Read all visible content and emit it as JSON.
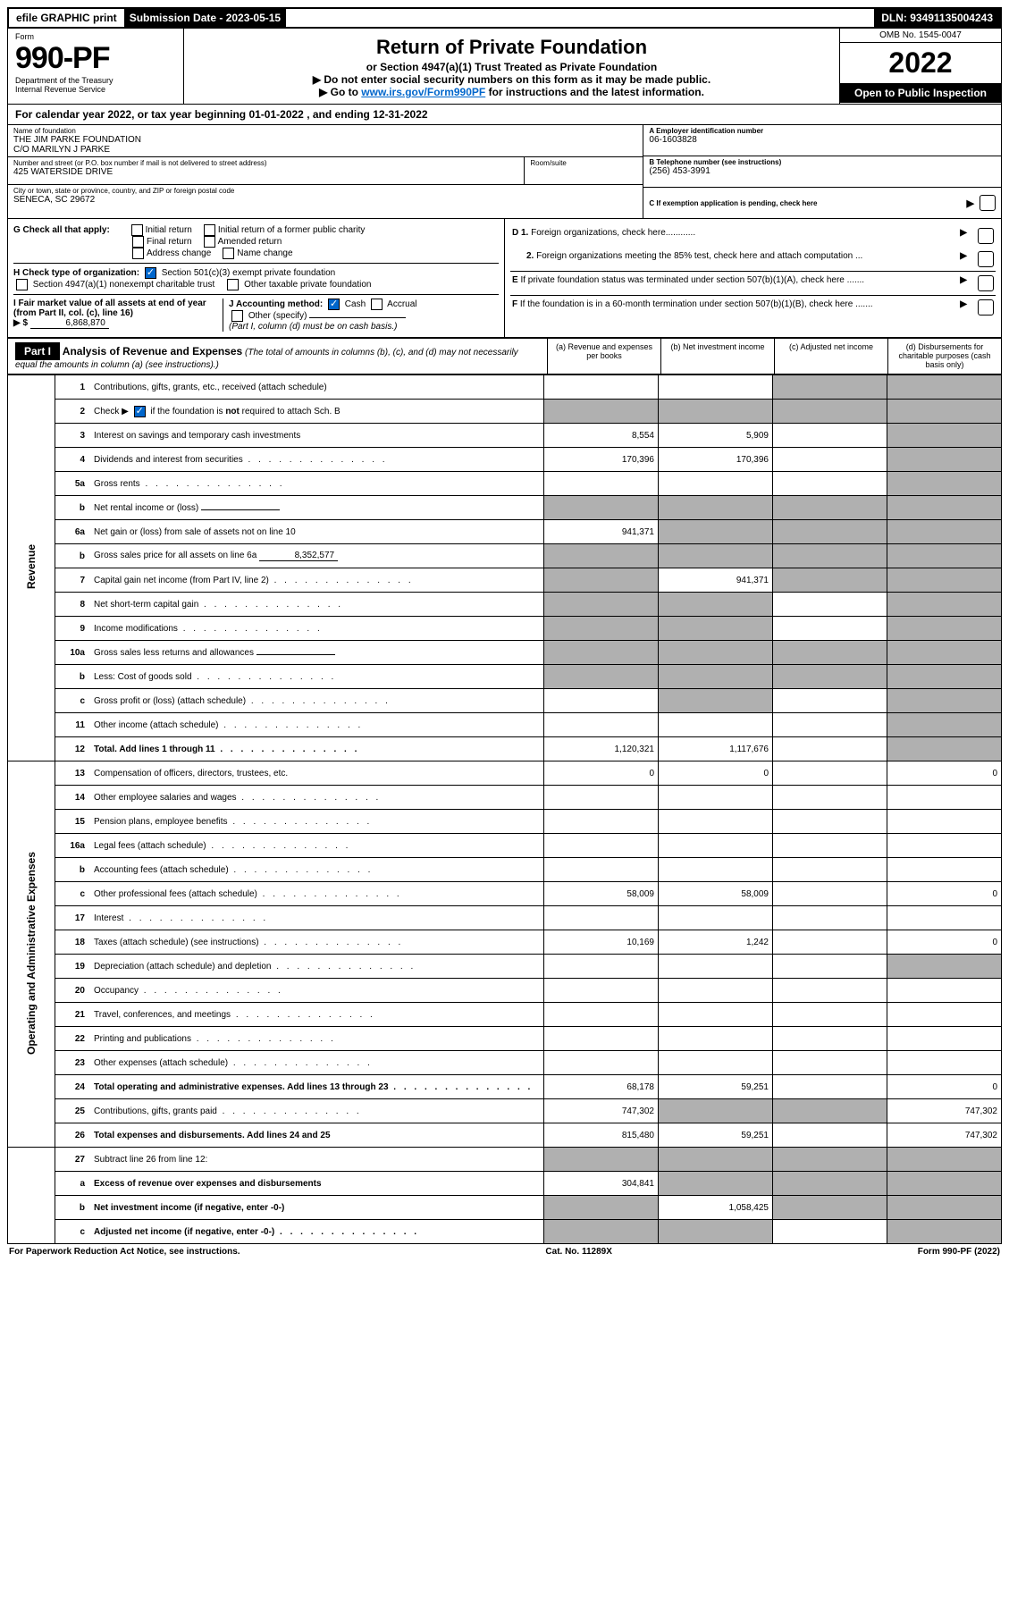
{
  "topbar": {
    "efile": "efile GRAPHIC print",
    "submission_label": "Submission Date - 2023-05-15",
    "dln": "DLN: 93491135004243"
  },
  "header": {
    "form_label": "Form",
    "form_number": "990-PF",
    "dept": "Department of the Treasury",
    "irs": "Internal Revenue Service",
    "title": "Return of Private Foundation",
    "subtitle": "or Section 4947(a)(1) Trust Treated as Private Foundation",
    "note1": "▶ Do not enter social security numbers on this form as it may be made public.",
    "note2_pre": "▶ Go to ",
    "note2_link": "www.irs.gov/Form990PF",
    "note2_post": " for instructions and the latest information.",
    "omb": "OMB No. 1545-0047",
    "year": "2022",
    "inspection": "Open to Public Inspection"
  },
  "calendar": {
    "text_pre": "For calendar year 2022, or tax year beginning ",
    "begin": "01-01-2022",
    "mid": " , and ending ",
    "end": "12-31-2022"
  },
  "entity": {
    "name_lbl": "Name of foundation",
    "name1": "THE JIM PARKE FOUNDATION",
    "name2": "C/O MARILYN J PARKE",
    "street_lbl": "Number and street (or P.O. box number if mail is not delivered to street address)",
    "street": "425 WATERSIDE DRIVE",
    "room_lbl": "Room/suite",
    "city_lbl": "City or town, state or province, country, and ZIP or foreign postal code",
    "city": "SENECA, SC  29672",
    "a_lbl": "A Employer identification number",
    "a_val": "06-1603828",
    "b_lbl": "B Telephone number (see instructions)",
    "b_val": "(256) 453-3991",
    "c_lbl": "C If exemption application is pending, check here"
  },
  "sectionG": {
    "label": "G Check all that apply:",
    "opts": [
      "Initial return",
      "Initial return of a former public charity",
      "Final return",
      "Amended return",
      "Address change",
      "Name change"
    ]
  },
  "sectionH": {
    "label": "H Check type of organization:",
    "opt1": "Section 501(c)(3) exempt private foundation",
    "opt2": "Section 4947(a)(1) nonexempt charitable trust",
    "opt3": "Other taxable private foundation"
  },
  "sectionI": {
    "label": "I Fair market value of all assets at end of year (from Part II, col. (c), line 16)",
    "arrow": "▶ $",
    "value": "6,868,870"
  },
  "sectionJ": {
    "label": "J Accounting method:",
    "cash": "Cash",
    "accrual": "Accrual",
    "other": "Other (specify)",
    "note": "(Part I, column (d) must be on cash basis.)"
  },
  "rightD": {
    "d1": "D 1. Foreign organizations, check here............",
    "d2": "2. Foreign organizations meeting the 85% test, check here and attach computation ...",
    "e": "E  If private foundation status was terminated under section 507(b)(1)(A), check here .......",
    "f": "F  If the foundation is in a 60-month termination under section 507(b)(1)(B), check here ......."
  },
  "part1": {
    "label": "Part I",
    "title": "Analysis of Revenue and Expenses",
    "title_note": " (The total of amounts in columns (b), (c), and (d) may not necessarily equal the amounts in column (a) (see instructions).)",
    "cols": {
      "a": "(a) Revenue and expenses per books",
      "b": "(b) Net investment income",
      "c": "(c) Adjusted net income",
      "d": "(d) Disbursements for charitable purposes (cash basis only)"
    }
  },
  "sidelabels": {
    "revenue": "Revenue",
    "expenses": "Operating and Administrative Expenses"
  },
  "rows": [
    {
      "n": "1",
      "d": "Contributions, gifts, grants, etc., received (attach schedule)",
      "a": "",
      "b": "",
      "c": "g",
      "dd": "g"
    },
    {
      "n": "2",
      "d": "Check ▶ ☑ if the foundation is not required to attach Sch. B",
      "dots": true,
      "a": "g",
      "b": "g",
      "c": "g",
      "dd": "g",
      "checked": true
    },
    {
      "n": "3",
      "d": "Interest on savings and temporary cash investments",
      "a": "8,554",
      "b": "5,909",
      "c": "",
      "dd": "g"
    },
    {
      "n": "4",
      "d": "Dividends and interest from securities",
      "dots": true,
      "a": "170,396",
      "b": "170,396",
      "c": "",
      "dd": "g"
    },
    {
      "n": "5a",
      "d": "Gross rents",
      "dots": true,
      "a": "",
      "b": "",
      "c": "",
      "dd": "g"
    },
    {
      "n": "b",
      "d": "Net rental income or (loss)",
      "inline": "",
      "a": "g",
      "b": "g",
      "c": "g",
      "dd": "g"
    },
    {
      "n": "6a",
      "d": "Net gain or (loss) from sale of assets not on line 10",
      "a": "941,371",
      "b": "g",
      "c": "g",
      "dd": "g"
    },
    {
      "n": "b",
      "d": "Gross sales price for all assets on line 6a",
      "inline": "8,352,577",
      "a": "g",
      "b": "g",
      "c": "g",
      "dd": "g"
    },
    {
      "n": "7",
      "d": "Capital gain net income (from Part IV, line 2)",
      "dots": true,
      "a": "g",
      "b": "941,371",
      "c": "g",
      "dd": "g"
    },
    {
      "n": "8",
      "d": "Net short-term capital gain",
      "dots": true,
      "a": "g",
      "b": "g",
      "c": "",
      "dd": "g"
    },
    {
      "n": "9",
      "d": "Income modifications",
      "dots": true,
      "a": "g",
      "b": "g",
      "c": "",
      "dd": "g"
    },
    {
      "n": "10a",
      "d": "Gross sales less returns and allowances",
      "inline": "",
      "a": "g",
      "b": "g",
      "c": "g",
      "dd": "g"
    },
    {
      "n": "b",
      "d": "Less: Cost of goods sold",
      "dots": true,
      "inline": "",
      "a": "g",
      "b": "g",
      "c": "g",
      "dd": "g"
    },
    {
      "n": "c",
      "d": "Gross profit or (loss) (attach schedule)",
      "dots": true,
      "a": "",
      "b": "g",
      "c": "",
      "dd": "g"
    },
    {
      "n": "11",
      "d": "Other income (attach schedule)",
      "dots": true,
      "a": "",
      "b": "",
      "c": "",
      "dd": "g"
    },
    {
      "n": "12",
      "d": "Total. Add lines 1 through 11",
      "dots": true,
      "bold": true,
      "a": "1,120,321",
      "b": "1,117,676",
      "c": "",
      "dd": "g"
    }
  ],
  "exp_rows": [
    {
      "n": "13",
      "d": "Compensation of officers, directors, trustees, etc.",
      "a": "0",
      "b": "0",
      "c": "",
      "dd": "0"
    },
    {
      "n": "14",
      "d": "Other employee salaries and wages",
      "dots": true,
      "a": "",
      "b": "",
      "c": "",
      "dd": ""
    },
    {
      "n": "15",
      "d": "Pension plans, employee benefits",
      "dots": true,
      "a": "",
      "b": "",
      "c": "",
      "dd": ""
    },
    {
      "n": "16a",
      "d": "Legal fees (attach schedule)",
      "dots": true,
      "a": "",
      "b": "",
      "c": "",
      "dd": ""
    },
    {
      "n": "b",
      "d": "Accounting fees (attach schedule)",
      "dots": true,
      "a": "",
      "b": "",
      "c": "",
      "dd": ""
    },
    {
      "n": "c",
      "d": "Other professional fees (attach schedule)",
      "dots": true,
      "a": "58,009",
      "b": "58,009",
      "c": "",
      "dd": "0"
    },
    {
      "n": "17",
      "d": "Interest",
      "dots": true,
      "a": "",
      "b": "",
      "c": "",
      "dd": ""
    },
    {
      "n": "18",
      "d": "Taxes (attach schedule) (see instructions)",
      "dots": true,
      "a": "10,169",
      "b": "1,242",
      "c": "",
      "dd": "0"
    },
    {
      "n": "19",
      "d": "Depreciation (attach schedule) and depletion",
      "dots": true,
      "a": "",
      "b": "",
      "c": "",
      "dd": "g"
    },
    {
      "n": "20",
      "d": "Occupancy",
      "dots": true,
      "a": "",
      "b": "",
      "c": "",
      "dd": ""
    },
    {
      "n": "21",
      "d": "Travel, conferences, and meetings",
      "dots": true,
      "a": "",
      "b": "",
      "c": "",
      "dd": ""
    },
    {
      "n": "22",
      "d": "Printing and publications",
      "dots": true,
      "a": "",
      "b": "",
      "c": "",
      "dd": ""
    },
    {
      "n": "23",
      "d": "Other expenses (attach schedule)",
      "dots": true,
      "a": "",
      "b": "",
      "c": "",
      "dd": ""
    },
    {
      "n": "24",
      "d": "Total operating and administrative expenses. Add lines 13 through 23",
      "dots": true,
      "bold": true,
      "a": "68,178",
      "b": "59,251",
      "c": "",
      "dd": "0"
    },
    {
      "n": "25",
      "d": "Contributions, gifts, grants paid",
      "dots": true,
      "a": "747,302",
      "b": "g",
      "c": "g",
      "dd": "747,302"
    },
    {
      "n": "26",
      "d": "Total expenses and disbursements. Add lines 24 and 25",
      "bold": true,
      "a": "815,480",
      "b": "59,251",
      "c": "",
      "dd": "747,302"
    }
  ],
  "bottom_rows": [
    {
      "n": "27",
      "d": "Subtract line 26 from line 12:",
      "a": "g",
      "b": "g",
      "c": "g",
      "dd": "g"
    },
    {
      "n": "a",
      "d": "Excess of revenue over expenses and disbursements",
      "bold": true,
      "a": "304,841",
      "b": "g",
      "c": "g",
      "dd": "g"
    },
    {
      "n": "b",
      "d": "Net investment income (if negative, enter -0-)",
      "bold": true,
      "a": "g",
      "b": "1,058,425",
      "c": "g",
      "dd": "g"
    },
    {
      "n": "c",
      "d": "Adjusted net income (if negative, enter -0-)",
      "dots": true,
      "bold": true,
      "a": "g",
      "b": "g",
      "c": "",
      "dd": "g"
    }
  ],
  "footer": {
    "left": "For Paperwork Reduction Act Notice, see instructions.",
    "center": "Cat. No. 11289X",
    "right": "Form 990-PF (2022)"
  }
}
